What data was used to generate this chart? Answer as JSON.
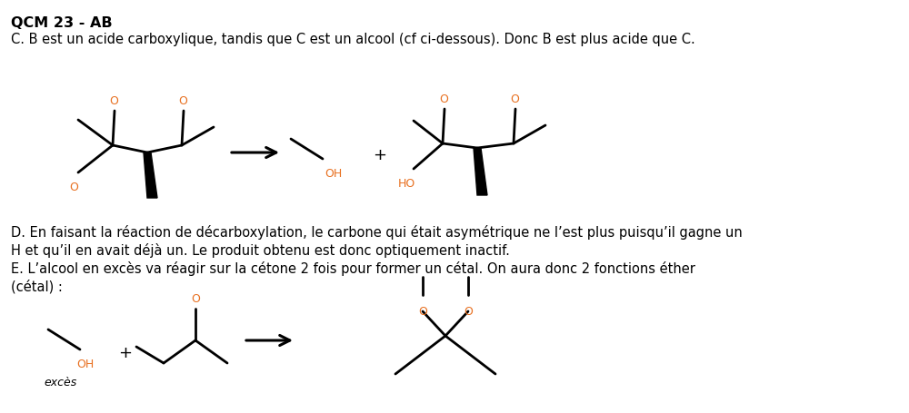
{
  "title": "QCM 23 - AB",
  "line1": "C. B est un acide carboxylique, tandis que C est un alcool (cf ci-dessous). Donc B est plus acide que C.",
  "line_D": "D. En faisant la réaction de décarboxylation, le carbone qui était asymétrique ne l’est plus puisqu’il gagne un",
  "line_D2": "H et qu’il en avait déjà un. Le produit obtenu est donc optiquement inactif.",
  "line_E": "E. L’alcool en excès va réagir sur la cétone 2 fois pour former un cétal. On aura donc 2 fonctions éther",
  "line_E2": "(cétal) :",
  "exces": "excès",
  "bg_color": "#ffffff",
  "text_color": "#000000",
  "orange_color": "#e87020",
  "lw": 2.0
}
